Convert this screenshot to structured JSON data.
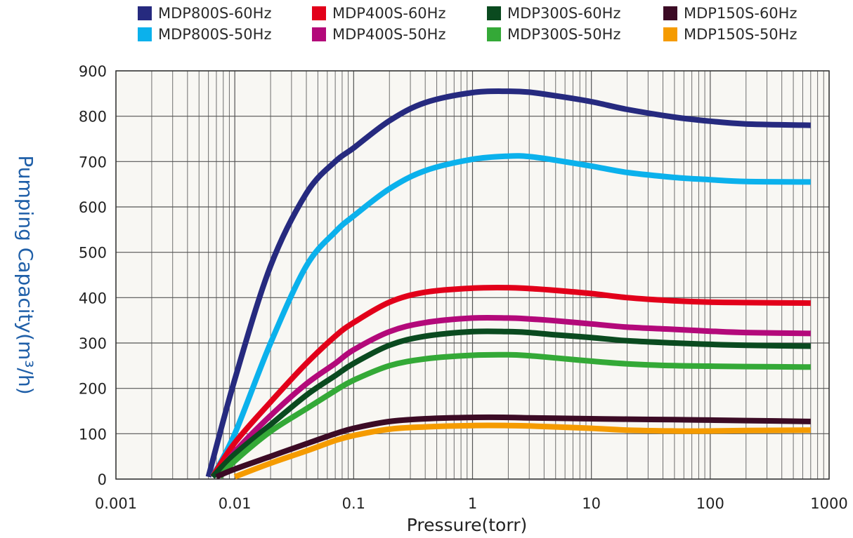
{
  "chart_data": {
    "type": "line",
    "title": "",
    "xlabel": "Pressure(torr)",
    "ylabel": "Pumping Capacity(m³/h)",
    "xscale": "log",
    "xlim": [
      0.001,
      1000
    ],
    "ylim": [
      0,
      900
    ],
    "xticks": [
      0.001,
      0.01,
      0.1,
      1,
      10,
      100,
      1000
    ],
    "xtick_labels": [
      "0.001",
      "0.01",
      "0.1",
      "1",
      "10",
      "100",
      "1000"
    ],
    "yticks": [
      0,
      100,
      200,
      300,
      400,
      500,
      600,
      700,
      800,
      900
    ],
    "ytick_labels": [
      "0",
      "100",
      "200",
      "300",
      "400",
      "500",
      "600",
      "700",
      "800",
      "900"
    ],
    "grid": true,
    "legend_position": "top",
    "background_color": "#f8f7f3",
    "ylabel_color": "#1f5fa8",
    "series": [
      {
        "name": "MDP800S-60Hz",
        "color": "#262a7f",
        "points": [
          [
            0.006,
            5
          ],
          [
            0.01,
            220
          ],
          [
            0.02,
            470
          ],
          [
            0.04,
            630
          ],
          [
            0.07,
            700
          ],
          [
            0.1,
            730
          ],
          [
            0.2,
            790
          ],
          [
            0.4,
            830
          ],
          [
            1,
            852
          ],
          [
            2,
            855
          ],
          [
            3,
            853
          ],
          [
            5,
            845
          ],
          [
            10,
            832
          ],
          [
            20,
            815
          ],
          [
            50,
            798
          ],
          [
            100,
            789
          ],
          [
            200,
            783
          ],
          [
            700,
            780
          ]
        ]
      },
      {
        "name": "MDP800S-50Hz",
        "color": "#0bb1ec",
        "points": [
          [
            0.0065,
            5
          ],
          [
            0.01,
            100
          ],
          [
            0.02,
            300
          ],
          [
            0.04,
            470
          ],
          [
            0.07,
            545
          ],
          [
            0.1,
            580
          ],
          [
            0.2,
            640
          ],
          [
            0.4,
            680
          ],
          [
            1,
            705
          ],
          [
            2,
            712
          ],
          [
            3,
            711
          ],
          [
            5,
            703
          ],
          [
            10,
            690
          ],
          [
            20,
            676
          ],
          [
            50,
            665
          ],
          [
            100,
            660
          ],
          [
            200,
            656
          ],
          [
            700,
            655
          ]
        ]
      },
      {
        "name": "MDP400S-60Hz",
        "color": "#e2001a",
        "points": [
          [
            0.0065,
            5
          ],
          [
            0.01,
            80
          ],
          [
            0.02,
            170
          ],
          [
            0.04,
            255
          ],
          [
            0.07,
            315
          ],
          [
            0.1,
            345
          ],
          [
            0.2,
            390
          ],
          [
            0.4,
            412
          ],
          [
            1,
            421
          ],
          [
            2,
            422
          ],
          [
            3,
            420
          ],
          [
            5,
            416
          ],
          [
            10,
            409
          ],
          [
            20,
            400
          ],
          [
            50,
            393
          ],
          [
            100,
            390
          ],
          [
            200,
            389
          ],
          [
            700,
            388
          ]
        ]
      },
      {
        "name": "MDP400S-50Hz",
        "color": "#b3097a",
        "points": [
          [
            0.007,
            5
          ],
          [
            0.01,
            60
          ],
          [
            0.02,
            140
          ],
          [
            0.04,
            210
          ],
          [
            0.07,
            255
          ],
          [
            0.1,
            285
          ],
          [
            0.2,
            325
          ],
          [
            0.4,
            345
          ],
          [
            1,
            355
          ],
          [
            2,
            355
          ],
          [
            3,
            353
          ],
          [
            5,
            349
          ],
          [
            10,
            342
          ],
          [
            20,
            335
          ],
          [
            50,
            330
          ],
          [
            100,
            326
          ],
          [
            200,
            323
          ],
          [
            700,
            321
          ]
        ]
      },
      {
        "name": "MDP300S-60Hz",
        "color": "#0a4a1f",
        "points": [
          [
            0.0065,
            5
          ],
          [
            0.01,
            55
          ],
          [
            0.02,
            120
          ],
          [
            0.04,
            185
          ],
          [
            0.07,
            228
          ],
          [
            0.1,
            255
          ],
          [
            0.2,
            295
          ],
          [
            0.4,
            315
          ],
          [
            1,
            325
          ],
          [
            2,
            325
          ],
          [
            3,
            323
          ],
          [
            5,
            318
          ],
          [
            10,
            312
          ],
          [
            20,
            305
          ],
          [
            50,
            300
          ],
          [
            100,
            297
          ],
          [
            200,
            295
          ],
          [
            700,
            293
          ]
        ]
      },
      {
        "name": "MDP300S-50Hz",
        "color": "#34a937",
        "points": [
          [
            0.0075,
            5
          ],
          [
            0.01,
            40
          ],
          [
            0.02,
            105
          ],
          [
            0.04,
            155
          ],
          [
            0.07,
            195
          ],
          [
            0.1,
            218
          ],
          [
            0.2,
            250
          ],
          [
            0.4,
            265
          ],
          [
            1,
            273
          ],
          [
            2,
            274
          ],
          [
            3,
            272
          ],
          [
            5,
            267
          ],
          [
            10,
            260
          ],
          [
            20,
            254
          ],
          [
            50,
            250
          ],
          [
            100,
            249
          ],
          [
            200,
            248
          ],
          [
            700,
            247
          ]
        ]
      },
      {
        "name": "MDP150S-60Hz",
        "color": "#3c0b25",
        "points": [
          [
            0.007,
            5
          ],
          [
            0.01,
            22
          ],
          [
            0.02,
            50
          ],
          [
            0.04,
            78
          ],
          [
            0.07,
            100
          ],
          [
            0.1,
            112
          ],
          [
            0.2,
            127
          ],
          [
            0.4,
            133
          ],
          [
            1,
            136
          ],
          [
            2,
            136
          ],
          [
            3,
            135
          ],
          [
            5,
            134
          ],
          [
            10,
            133
          ],
          [
            20,
            132
          ],
          [
            50,
            131
          ],
          [
            100,
            130
          ],
          [
            200,
            129
          ],
          [
            700,
            127
          ]
        ]
      },
      {
        "name": "MDP150S-50Hz",
        "color": "#f59b00",
        "points": [
          [
            0.01,
            5
          ],
          [
            0.02,
            35
          ],
          [
            0.04,
            62
          ],
          [
            0.07,
            85
          ],
          [
            0.1,
            96
          ],
          [
            0.2,
            110
          ],
          [
            0.4,
            115
          ],
          [
            1,
            118
          ],
          [
            2,
            118
          ],
          [
            3,
            117
          ],
          [
            5,
            115
          ],
          [
            10,
            112
          ],
          [
            20,
            108
          ],
          [
            50,
            106
          ],
          [
            100,
            106
          ],
          [
            200,
            107
          ],
          [
            700,
            108
          ]
        ]
      }
    ]
  }
}
